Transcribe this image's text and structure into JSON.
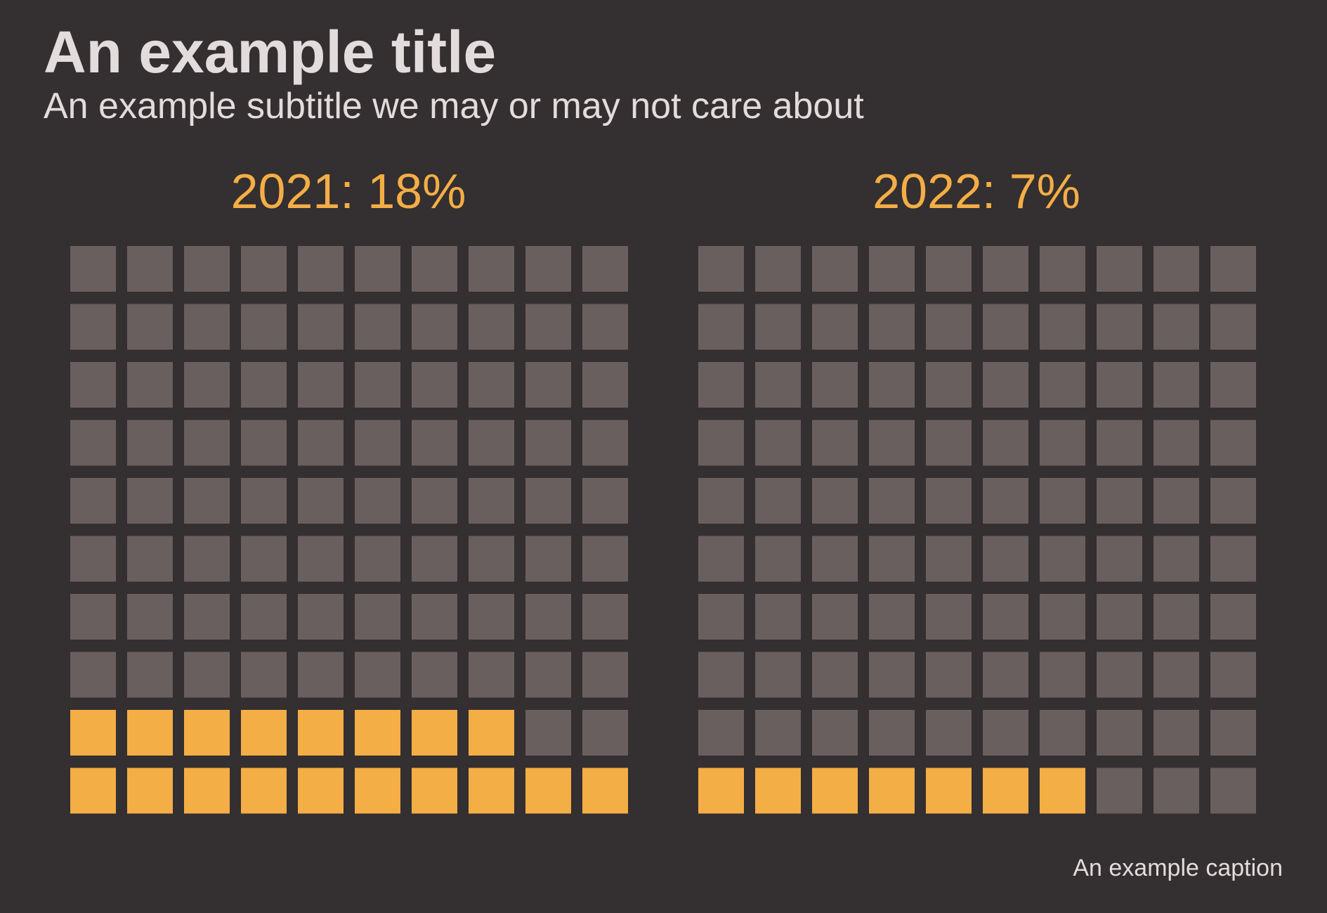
{
  "title": "An example title",
  "subtitle": "An example subtitle we may or may not care about",
  "caption": "An example caption",
  "colors": {
    "background": "#342f30",
    "highlight": "#f4ae46",
    "empty": "#6a5f5f",
    "text": "#e3dcdc"
  },
  "chart_data": [
    {
      "type": "waffle",
      "label": "2021: 18%",
      "year": 2021,
      "percent": 18,
      "grid": {
        "rows": 10,
        "columns": 10
      },
      "fill_order": "bottom-up, left-to-right"
    },
    {
      "type": "waffle",
      "label": "2022: 7%",
      "year": 2022,
      "percent": 7,
      "grid": {
        "rows": 10,
        "columns": 10
      },
      "fill_order": "bottom-up, left-to-right"
    }
  ]
}
